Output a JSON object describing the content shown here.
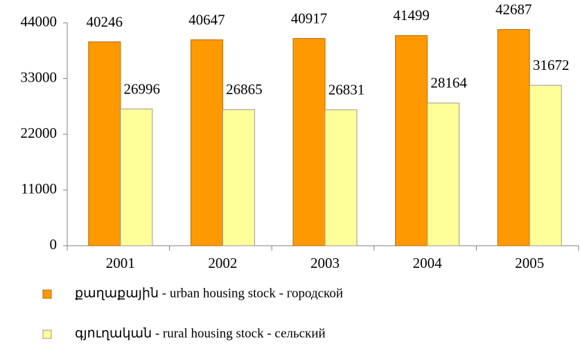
{
  "chart_data": {
    "type": "bar",
    "categories": [
      "2001",
      "2002",
      "2003",
      "2004",
      "2005"
    ],
    "series": [
      {
        "name": "քաղաքային - urban housing stock - городской",
        "color": "#ff9900",
        "values": [
          40246,
          40647,
          40917,
          41499,
          42687
        ]
      },
      {
        "name": "գյուղական - rural housing stock - сельский",
        "color": "#ffff99",
        "values": [
          26996,
          26865,
          26831,
          28164,
          31672
        ]
      }
    ],
    "ylim": [
      0,
      44000
    ],
    "yticks": [
      0,
      11000,
      22000,
      33000,
      44000
    ],
    "grid": false,
    "legend": "bottom"
  }
}
